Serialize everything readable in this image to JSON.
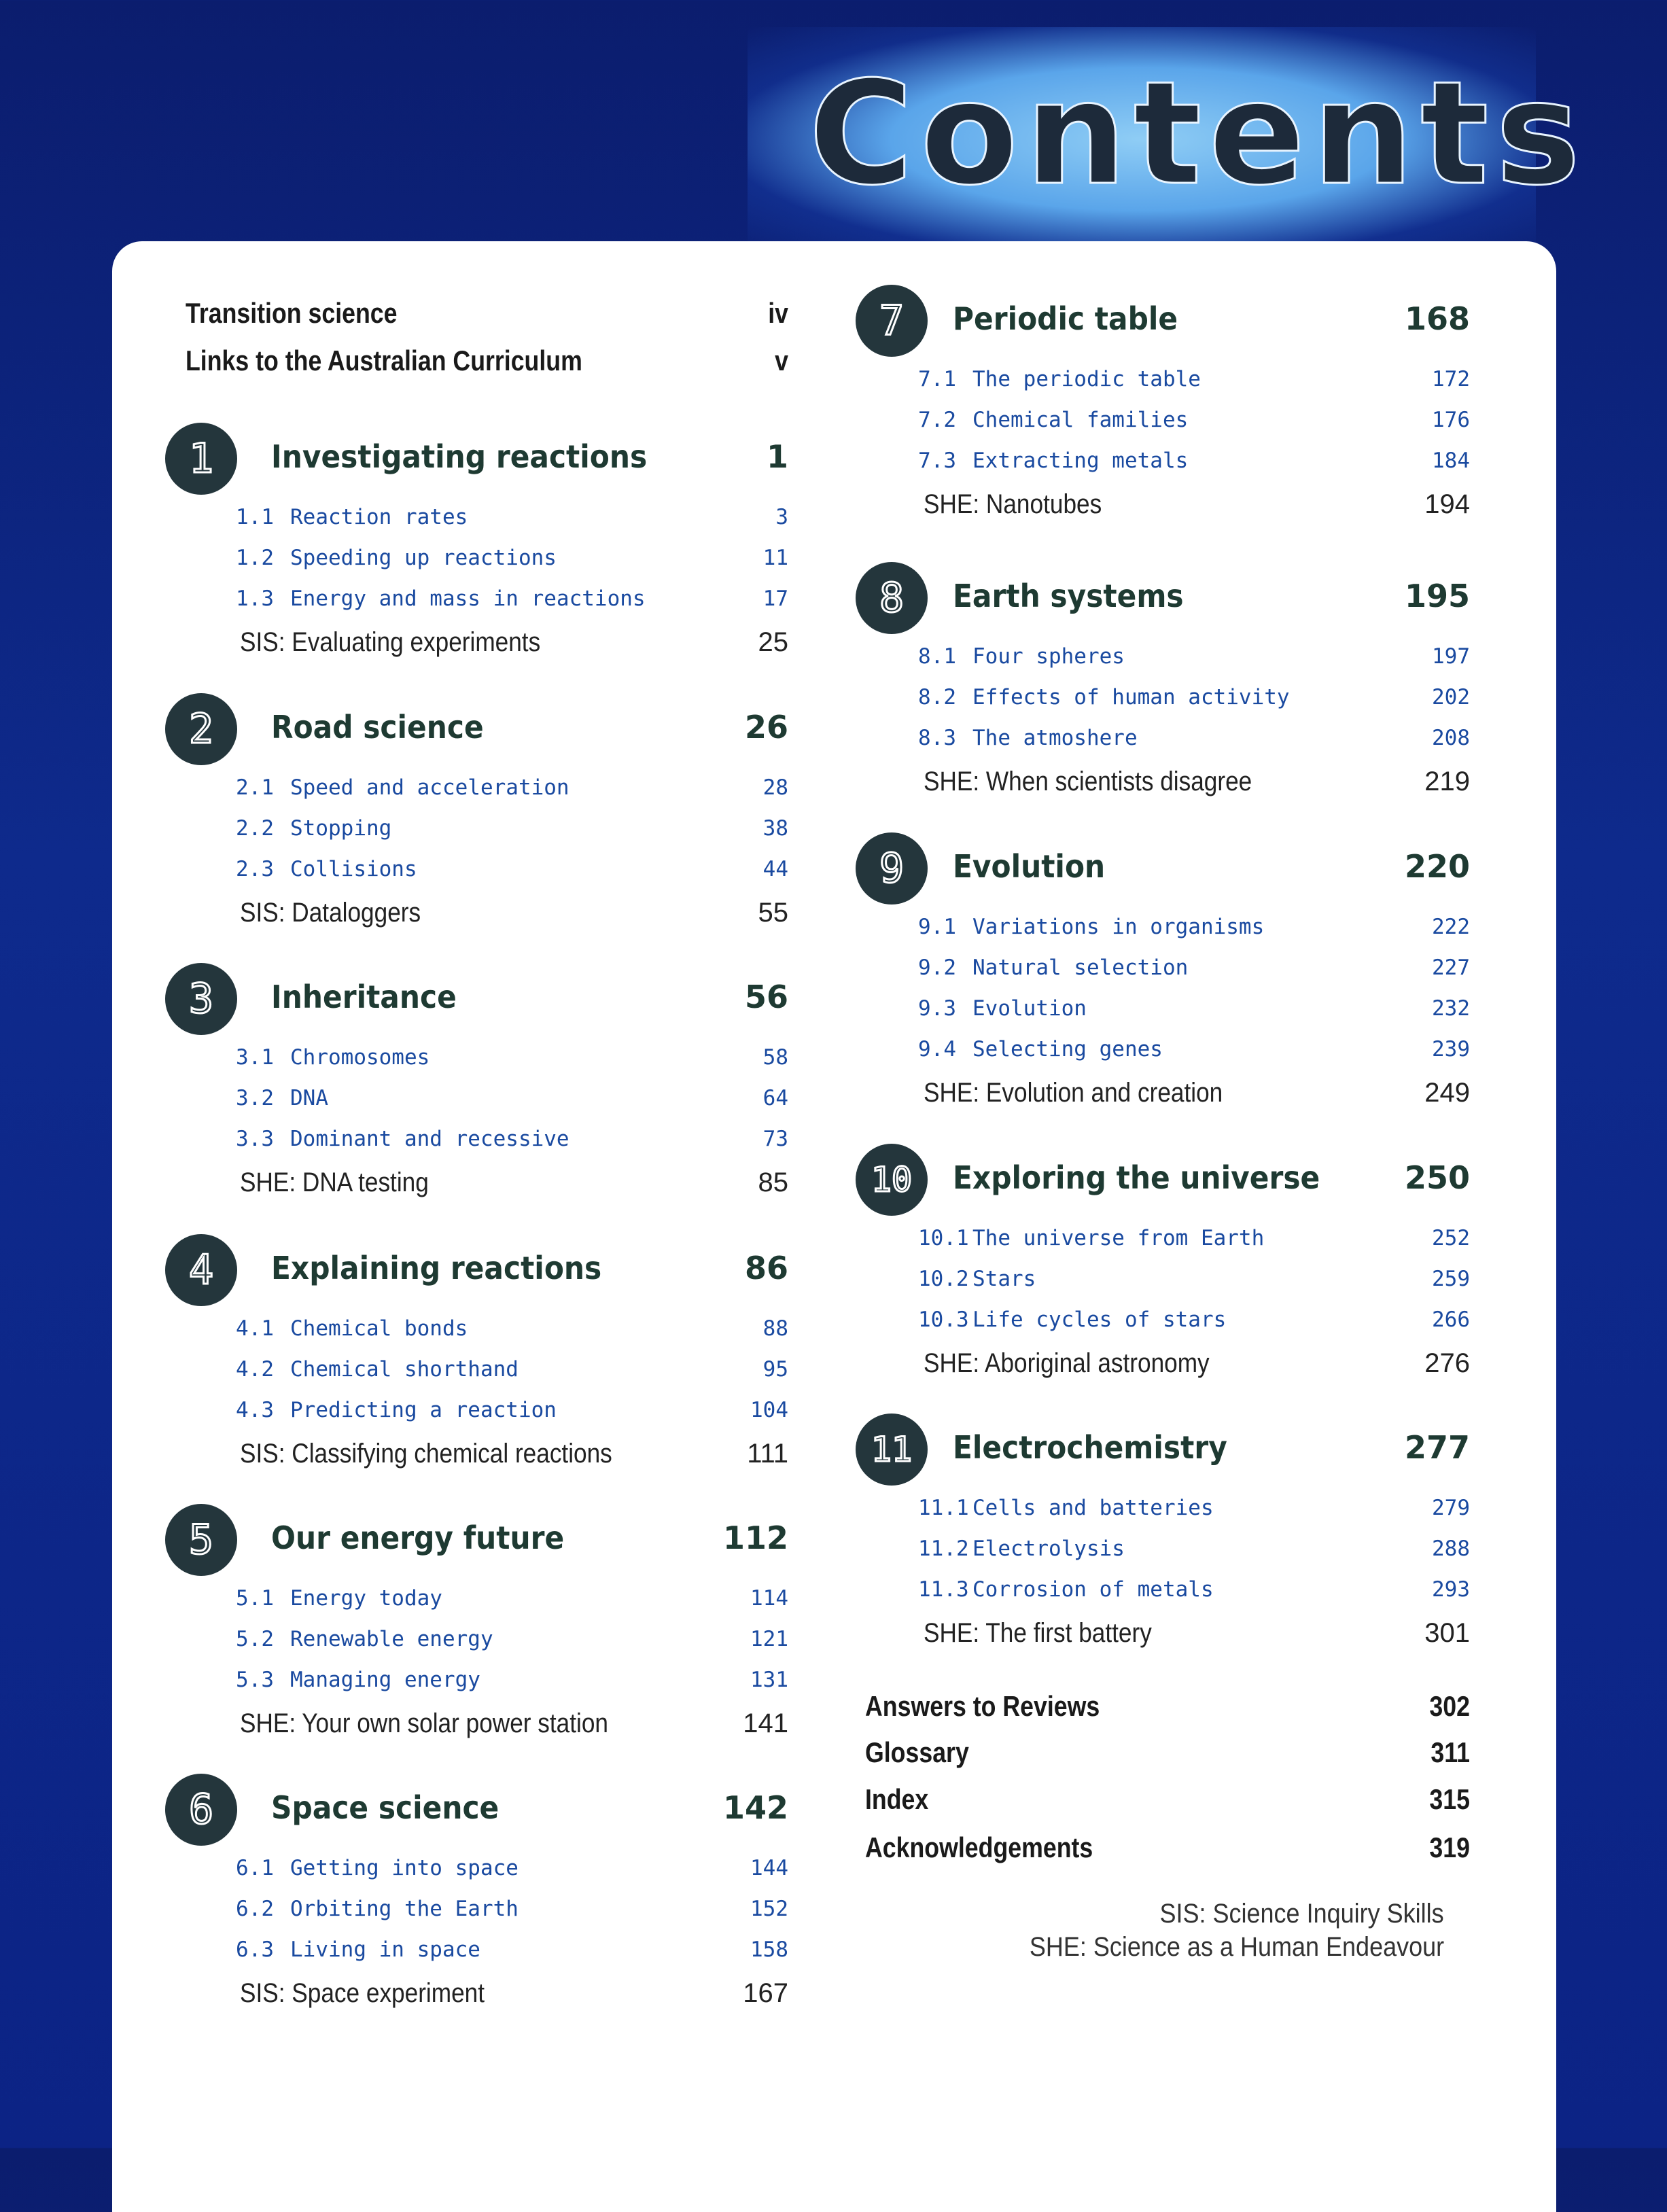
{
  "title": "Contents",
  "front_matter": [
    {
      "label": "Transition science",
      "page": "iv"
    },
    {
      "label": "Links to the Australian Curriculum",
      "page": "v"
    }
  ],
  "chapters": [
    {
      "number": "1",
      "title": "Investigating reactions",
      "page": "1",
      "sections": [
        {
          "num": "1.1",
          "title": "Reaction rates",
          "page": "3"
        },
        {
          "num": "1.2",
          "title": "Speeding up reactions",
          "page": "11"
        },
        {
          "num": "1.3",
          "title": "Energy and mass in reactions",
          "page": "17"
        }
      ],
      "special": {
        "label": "SIS: Evaluating experiments",
        "page": "25"
      }
    },
    {
      "number": "2",
      "title": "Road science",
      "page": "26",
      "sections": [
        {
          "num": "2.1",
          "title": "Speed and acceleration",
          "page": "28"
        },
        {
          "num": "2.2",
          "title": "Stopping",
          "page": "38"
        },
        {
          "num": "2.3",
          "title": "Collisions",
          "page": "44"
        }
      ],
      "special": {
        "label": "SIS: Dataloggers",
        "page": "55"
      }
    },
    {
      "number": "3",
      "title": "Inheritance",
      "page": "56",
      "sections": [
        {
          "num": "3.1",
          "title": "Chromosomes",
          "page": "58"
        },
        {
          "num": "3.2",
          "title": "DNA",
          "page": "64"
        },
        {
          "num": "3.3",
          "title": "Dominant and recessive",
          "page": "73"
        }
      ],
      "special": {
        "label": "SHE: DNA testing",
        "page": "85"
      }
    },
    {
      "number": "4",
      "title": "Explaining reactions",
      "page": "86",
      "sections": [
        {
          "num": "4.1",
          "title": "Chemical bonds",
          "page": "88"
        },
        {
          "num": "4.2",
          "title": "Chemical shorthand",
          "page": "95"
        },
        {
          "num": "4.3",
          "title": "Predicting a reaction",
          "page": "104"
        }
      ],
      "special": {
        "label": "SIS: Classifying chemical reactions",
        "page": "111"
      }
    },
    {
      "number": "5",
      "title": "Our energy future",
      "page": "112",
      "sections": [
        {
          "num": "5.1",
          "title": "Energy today",
          "page": "114"
        },
        {
          "num": "5.2",
          "title": "Renewable energy",
          "page": "121"
        },
        {
          "num": "5.3",
          "title": "Managing energy",
          "page": "131"
        }
      ],
      "special": {
        "label": "SHE: Your own solar power station",
        "page": "141"
      }
    },
    {
      "number": "6",
      "title": "Space science",
      "page": "142",
      "sections": [
        {
          "num": "6.1",
          "title": "Getting into space",
          "page": "144"
        },
        {
          "num": "6.2",
          "title": "Orbiting the Earth",
          "page": "152"
        },
        {
          "num": "6.3",
          "title": "Living in space",
          "page": "158"
        }
      ],
      "special": {
        "label": "SIS: Space experiment",
        "page": "167"
      }
    },
    {
      "number": "7",
      "title": "Periodic table",
      "page": "168",
      "sections": [
        {
          "num": "7.1",
          "title": "The periodic table",
          "page": "172"
        },
        {
          "num": "7.2",
          "title": "Chemical families",
          "page": "176"
        },
        {
          "num": "7.3",
          "title": "Extracting metals",
          "page": "184"
        }
      ],
      "special": {
        "label": "SHE: Nanotubes",
        "page": "194"
      }
    },
    {
      "number": "8",
      "title": "Earth systems",
      "page": "195",
      "sections": [
        {
          "num": "8.1",
          "title": "Four spheres",
          "page": "197"
        },
        {
          "num": "8.2",
          "title": "Effects of human activity",
          "page": "202"
        },
        {
          "num": "8.3",
          "title": "The atmoshere",
          "page": "208"
        }
      ],
      "special": {
        "label": "SHE: When scientists disagree",
        "page": "219"
      }
    },
    {
      "number": "9",
      "title": "Evolution",
      "page": "220",
      "sections": [
        {
          "num": "9.1",
          "title": "Variations in organisms",
          "page": "222"
        },
        {
          "num": "9.2",
          "title": "Natural selection",
          "page": "227"
        },
        {
          "num": "9.3",
          "title": "Evolution",
          "page": "232"
        },
        {
          "num": "9.4",
          "title": "Selecting genes",
          "page": "239"
        }
      ],
      "special": {
        "label": "SHE: Evolution and creation",
        "page": "249"
      }
    },
    {
      "number": "10",
      "title": "Exploring the universe",
      "page": "250",
      "sections": [
        {
          "num": "10.1",
          "title": "The universe from Earth",
          "page": "252"
        },
        {
          "num": "10.2",
          "title": "Stars",
          "page": "259"
        },
        {
          "num": "10.3",
          "title": "Life cycles of stars",
          "page": "266"
        }
      ],
      "special": {
        "label": "SHE: Aboriginal astronomy",
        "page": "276"
      }
    },
    {
      "number": "11",
      "title": "Electrochemistry",
      "page": "277",
      "sections": [
        {
          "num": "11.1",
          "title": "Cells and batteries",
          "page": "279"
        },
        {
          "num": "11.2",
          "title": "Electrolysis",
          "page": "288"
        },
        {
          "num": "11.3",
          "title": "Corrosion of metals",
          "page": "293"
        }
      ],
      "special": {
        "label": "SHE: The first battery",
        "page": "301"
      }
    }
  ],
  "back_matter": [
    {
      "label": "Answers to Reviews",
      "page": "302"
    },
    {
      "label": "Glossary",
      "page": "311"
    },
    {
      "label": "Index",
      "page": "315"
    },
    {
      "label": "Acknowledgements",
      "page": "319"
    }
  ],
  "legend": [
    "SIS: Science Inquiry Skills",
    "SHE: Science as a Human Endeavour"
  ],
  "colors": {
    "background": "#0e2a8c",
    "chapter_circle": "#24363c",
    "chapter_title": "#1e3a32",
    "section_text": "#1a4aa0"
  }
}
